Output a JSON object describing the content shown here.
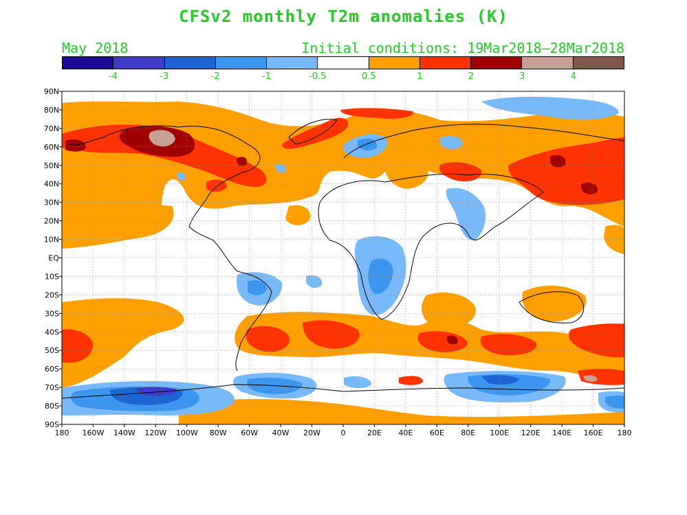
{
  "title": "CFSv2 monthly T2m anomalies (K)",
  "forecast_month": "May 2018",
  "initial_conditions": "Initial conditions: 19Mar2018–28Mar2018",
  "colorbar": {
    "colors": [
      "#1a0a96",
      "#3c3cc8",
      "#1e64d2",
      "#3c96f0",
      "#78b9fa",
      "#ffffff",
      "#ffa000",
      "#ff3200",
      "#a00000",
      "#c8a096",
      "#80584a"
    ],
    "tick_labels": [
      "-4",
      "-3",
      "-2",
      "-1",
      "-0.5",
      "0.5",
      "1",
      "2",
      "3",
      "4"
    ]
  },
  "axes": {
    "lat_labels": [
      "90N",
      "80N",
      "70N",
      "60N",
      "50N",
      "40N",
      "30N",
      "20N",
      "10N",
      "EQ",
      "10S",
      "20S",
      "30S",
      "40S",
      "50S",
      "60S",
      "70S",
      "80S",
      "90S"
    ],
    "lon_labels": [
      "180",
      "160W",
      "140W",
      "120W",
      "100W",
      "80W",
      "60W",
      "40W",
      "20W",
      "0",
      "20E",
      "40E",
      "60E",
      "80E",
      "100E",
      "120E",
      "140E",
      "160E",
      "180"
    ]
  },
  "colors": {
    "text_accent": "#22cc22",
    "grid": "#888888"
  }
}
